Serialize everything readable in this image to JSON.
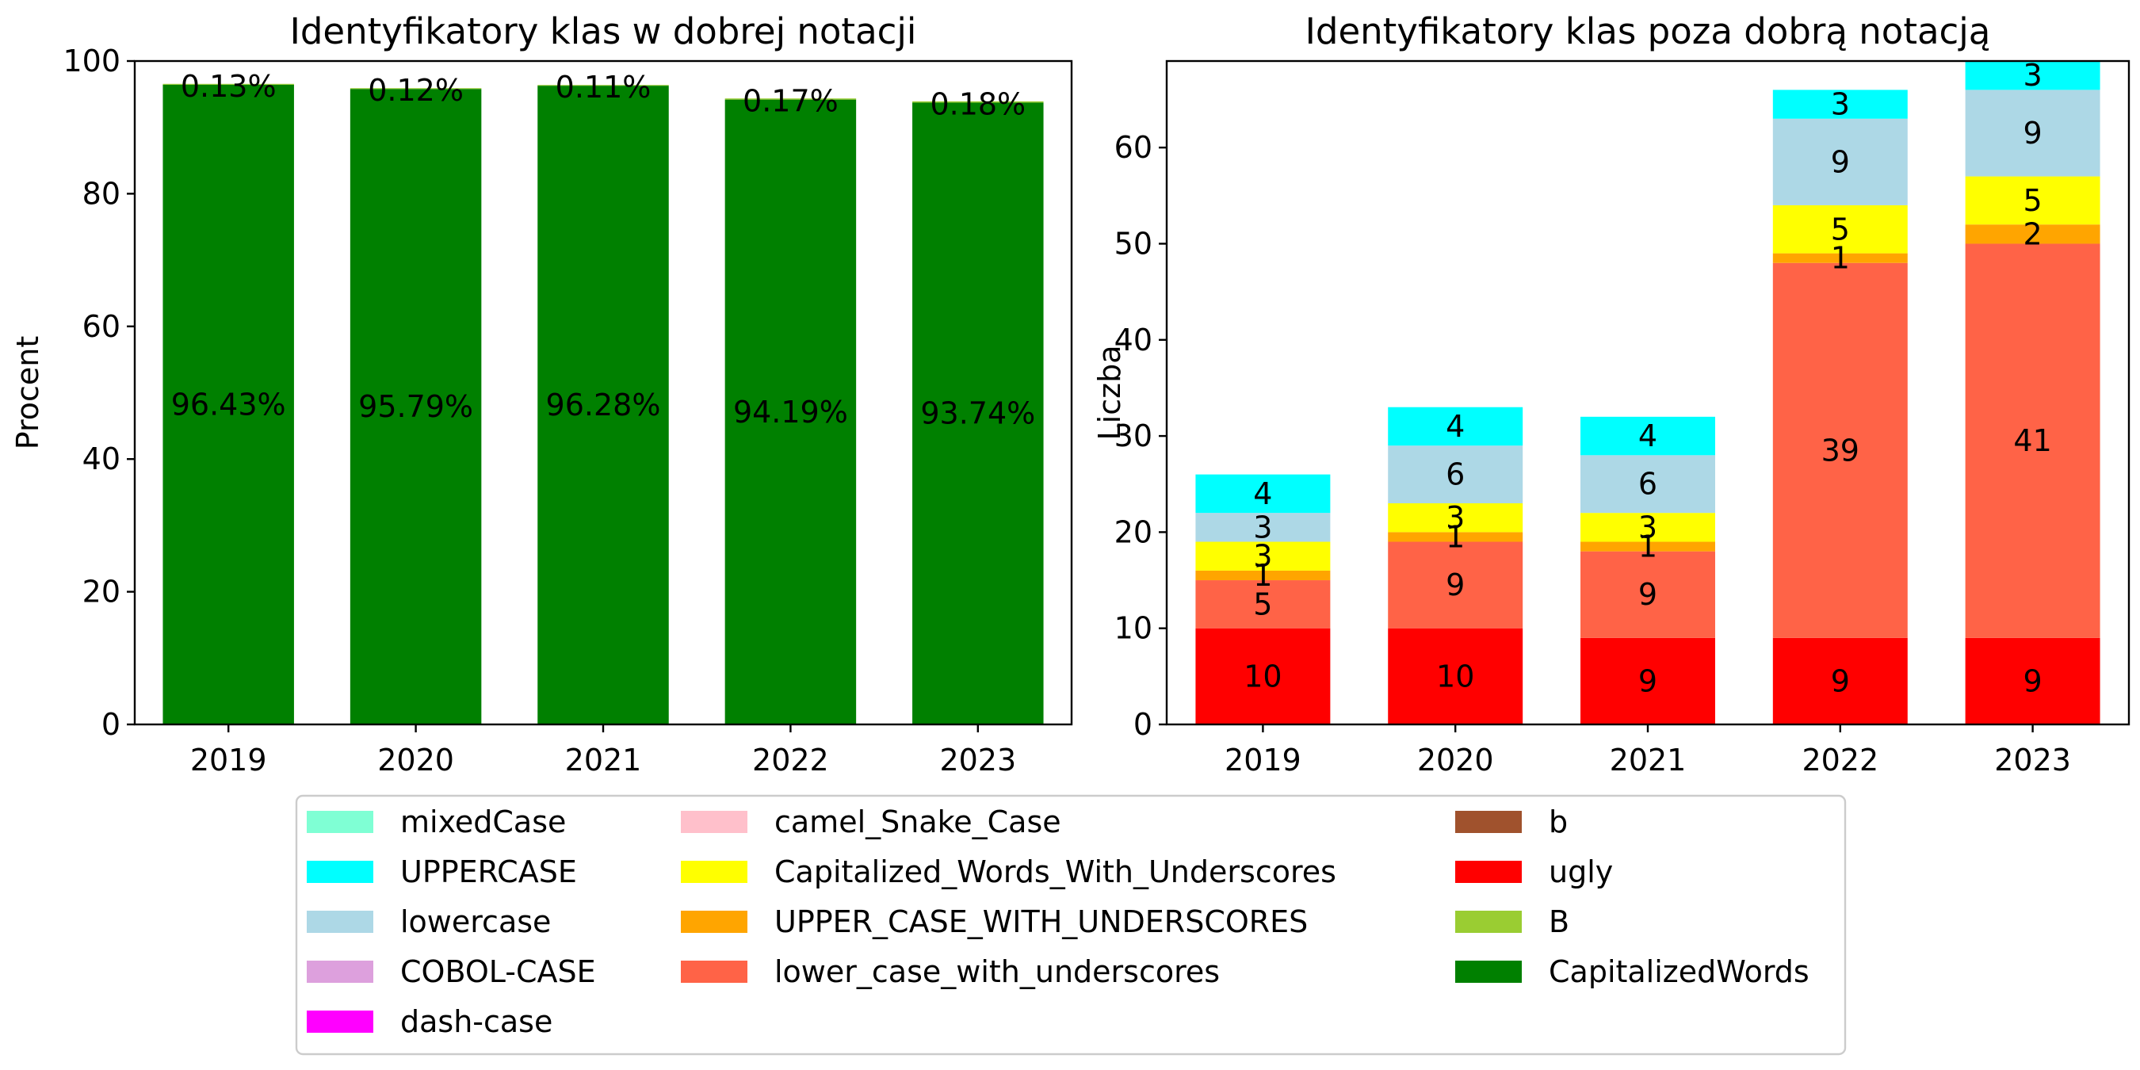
{
  "chart_data": [
    {
      "type": "bar",
      "title": "Identyfikatory klas w dobrej notacji",
      "xlabel": "",
      "ylabel": "Procent",
      "ylim": [
        0,
        100
      ],
      "yticks": [
        0,
        20,
        40,
        60,
        80,
        100
      ],
      "categories": [
        "2019",
        "2020",
        "2021",
        "2022",
        "2023"
      ],
      "series": [
        {
          "name": "CapitalizedWords",
          "color": "#008000",
          "values": [
            96.43,
            95.79,
            96.28,
            94.19,
            93.74
          ],
          "labels": [
            "96.43%",
            "95.79%",
            "96.28%",
            "94.19%",
            "93.74%"
          ]
        },
        {
          "name": "B",
          "color": "#9acd32",
          "values": [
            0.13,
            0.12,
            0.11,
            0.17,
            0.18
          ],
          "labels": [
            "0.13%",
            "0.12%",
            "0.11%",
            "0.17%",
            "0.18%"
          ]
        }
      ],
      "grid": false
    },
    {
      "type": "bar",
      "stacked": true,
      "title": "Identyfikatory klas poza dobrą notacją",
      "xlabel": "",
      "ylabel": "Liczba",
      "ylim": [
        0,
        69
      ],
      "yticks": [
        0,
        10,
        20,
        30,
        40,
        50,
        60
      ],
      "categories": [
        "2019",
        "2020",
        "2021",
        "2022",
        "2023"
      ],
      "series": [
        {
          "name": "ugly",
          "color": "#ff0000",
          "values": [
            10,
            10,
            9,
            9,
            9
          ]
        },
        {
          "name": "lower_case_with_underscores",
          "color": "#ff6347",
          "values": [
            5,
            9,
            9,
            39,
            41
          ]
        },
        {
          "name": "UPPER_CASE_WITH_UNDERSCORES",
          "color": "#ffa500",
          "values": [
            1,
            1,
            1,
            1,
            2
          ]
        },
        {
          "name": "Capitalized_Words_With_Underscores",
          "color": "#ffff00",
          "values": [
            3,
            3,
            3,
            5,
            5
          ]
        },
        {
          "name": "lowercase",
          "color": "#add8e6",
          "values": [
            3,
            6,
            6,
            9,
            9
          ]
        },
        {
          "name": "UPPERCASE",
          "color": "#00ffff",
          "values": [
            4,
            4,
            4,
            3,
            3
          ]
        }
      ],
      "grid": false
    }
  ],
  "legend": {
    "placement": "bottom-center",
    "columns": [
      [
        {
          "label": "mixedCase",
          "color": "#7fffd4"
        },
        {
          "label": "UPPERCASE",
          "color": "#00ffff"
        },
        {
          "label": "lowercase",
          "color": "#add8e6"
        },
        {
          "label": "COBOL-CASE",
          "color": "#dda0dd"
        },
        {
          "label": "dash-case",
          "color": "#ff00ff"
        }
      ],
      [
        {
          "label": "camel_Snake_Case",
          "color": "#ffc0cb"
        },
        {
          "label": "Capitalized_Words_With_Underscores",
          "color": "#ffff00"
        },
        {
          "label": "UPPER_CASE_WITH_UNDERSCORES",
          "color": "#ffa500"
        },
        {
          "label": "lower_case_with_underscores",
          "color": "#ff6347"
        }
      ],
      [
        {
          "label": "b",
          "color": "#a0522d"
        },
        {
          "label": "ugly",
          "color": "#ff0000"
        },
        {
          "label": "B",
          "color": "#9acd32"
        },
        {
          "label": "CapitalizedWords",
          "color": "#008000"
        }
      ]
    ]
  }
}
